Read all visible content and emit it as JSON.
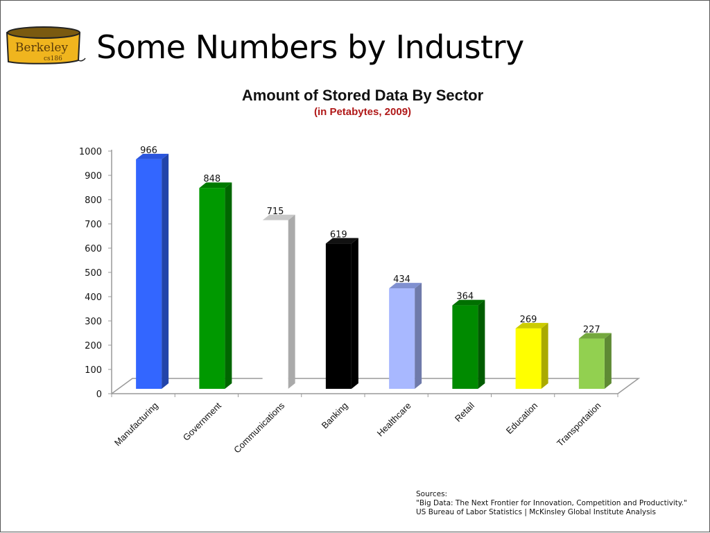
{
  "slide": {
    "title": "Some Numbers by Industry",
    "logo": {
      "text": "Berkeley",
      "subtext": "cs186"
    }
  },
  "chart_data": {
    "type": "bar",
    "title": "Amount of Stored Data By Sector",
    "subtitle": "(in Petabytes, 2009)",
    "xlabel": "",
    "ylabel": "",
    "ylim": [
      0,
      1000
    ],
    "yticks": [
      0,
      100,
      200,
      300,
      400,
      500,
      600,
      700,
      800,
      900,
      1000
    ],
    "grid": false,
    "legend": null,
    "style": "3d-column",
    "categories": [
      "Manufacturing",
      "Government",
      "Communications",
      "Banking",
      "Healthcare",
      "Retail",
      "Education",
      "Transportation"
    ],
    "values": [
      966,
      848,
      715,
      619,
      434,
      364,
      269,
      227
    ],
    "data_labels": [
      "966",
      "848",
      "715",
      "619",
      "434",
      "364",
      "269",
      "227"
    ],
    "colors": [
      {
        "front": "#3366ff",
        "side": "#2244aa",
        "top": "#2a55dd"
      },
      {
        "front": "#009900",
        "side": "#006600",
        "top": "#007a00"
      },
      {
        "front": "#ffffff",
        "side": "#aaaaaa",
        "top": "#c8c8c8"
      },
      {
        "front": "#000000",
        "side": "#000000",
        "top": "#111111"
      },
      {
        "front": "#a8b8ff",
        "side": "#6f7aaa",
        "top": "#8090d0"
      },
      {
        "front": "#008a00",
        "side": "#005c00",
        "top": "#007000"
      },
      {
        "front": "#ffff00",
        "side": "#aaaa00",
        "top": "#cccc00"
      },
      {
        "front": "#92d050",
        "side": "#5e8a34",
        "top": "#74a83e"
      }
    ]
  },
  "footer": {
    "sources_label": "Sources:",
    "source_line_1": "\"Big Data: The Next Frontier for Innovation, Competition and Productivity.\"",
    "source_line_2": "US Bureau of Labor Statistics | McKinsley Global Institute Analysis"
  }
}
